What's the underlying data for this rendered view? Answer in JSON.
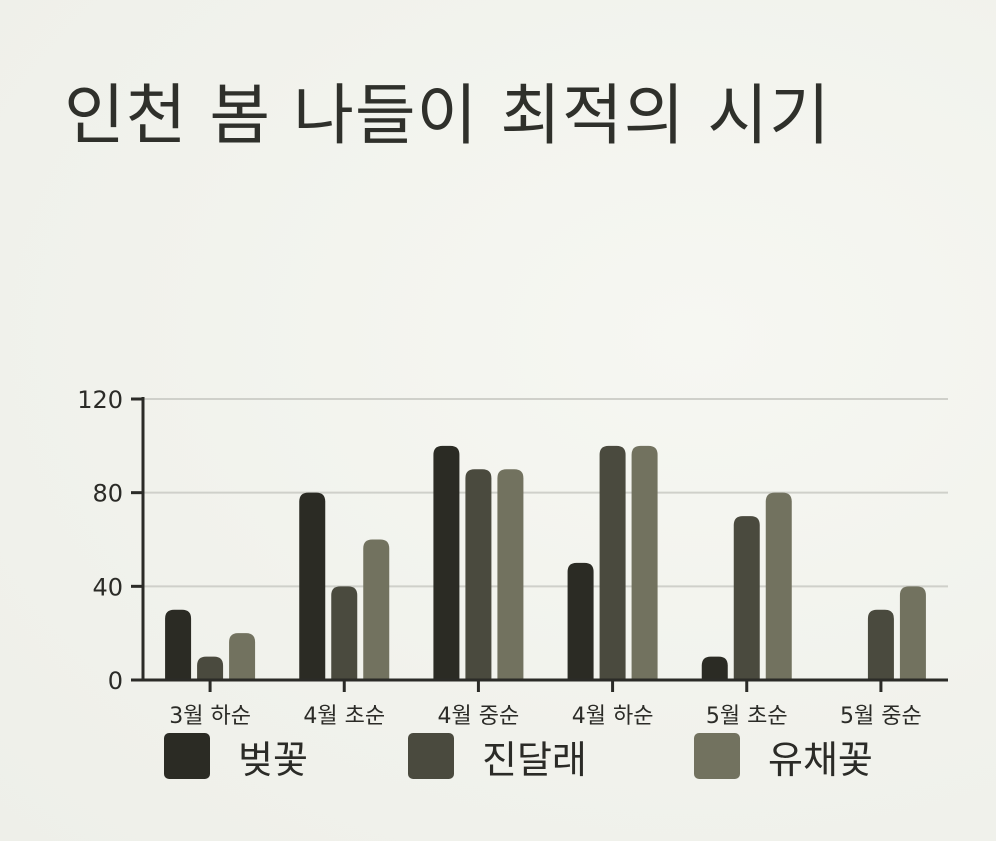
{
  "title": "인천 봄 나들이 최적의 시기",
  "chart_data": {
    "type": "bar",
    "categories": [
      "3월 하순",
      "4월 초순",
      "4월 중순",
      "4월 하순",
      "5월 초순",
      "5월 중순"
    ],
    "series": [
      {
        "name": "벚꽃",
        "values": [
          30,
          80,
          100,
          50,
          10,
          0
        ],
        "color": "#2b2b24"
      },
      {
        "name": "진달래",
        "values": [
          10,
          40,
          90,
          100,
          70,
          30
        ],
        "color": "#4a4a3e"
      },
      {
        "name": "유채꽃",
        "values": [
          20,
          60,
          90,
          100,
          80,
          40
        ],
        "color": "#72725f"
      }
    ],
    "ylim": [
      0,
      120
    ],
    "yticks": [
      0,
      40,
      80,
      120
    ],
    "grid": true,
    "legend_position": "bottom"
  }
}
